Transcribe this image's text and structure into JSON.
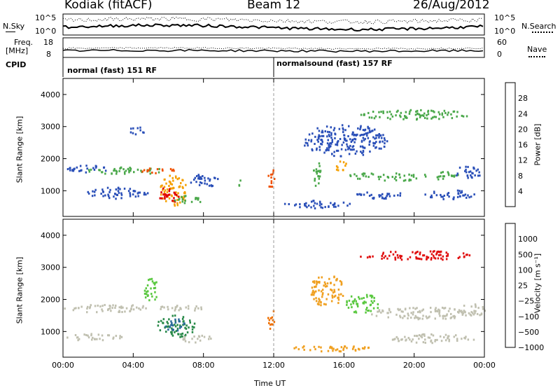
{
  "header": {
    "station": "Kodiak (fitACF)",
    "beam": "Beam 12",
    "date": "26/Aug/2012"
  },
  "top_strip": {
    "nsky_label": "N.Sky",
    "nsky_ticks": [
      "10^5",
      "10^0"
    ],
    "nsearch_label": "N.Search",
    "nsearch_ticks": [
      "10^5",
      "10^0"
    ],
    "freq_label": "Freq.",
    "freq_unit": "[MHz]",
    "freq_ticks": [
      "18",
      "8"
    ],
    "nave_label": "Nave",
    "nave_ticks": [
      "60",
      "0"
    ],
    "cpid_label": "CPID",
    "cpid_segments": [
      {
        "label": "normal (fast) 151 RF",
        "start_hour": 0
      },
      {
        "label": "normalsound (fast) 157 RF",
        "start_hour": 12
      }
    ]
  },
  "chart_data": [
    {
      "type": "heatmap",
      "name": "power-panel",
      "ylabel": "Slant Range [km]",
      "ylim": [
        200,
        4500
      ],
      "yticks": [
        "1000",
        "2000",
        "3000",
        "4000"
      ],
      "xlim": [
        0,
        24
      ],
      "colorbar_label": "Power [dB]",
      "colorbar_ticks": [
        "4",
        "8",
        "12",
        "16",
        "20",
        "24",
        "28"
      ],
      "colorbar_colors": [
        "#0000ff",
        "#2a4fb8",
        "#3a7a70",
        "#4aa84a",
        "#c8c820",
        "#f5a000",
        "#f05000",
        "#e00000"
      ],
      "patches": [
        {
          "x": 1.2,
          "y": 1700,
          "rx": 1.3,
          "ry": 120,
          "c": "#2a4fb8"
        },
        {
          "x": 3.5,
          "y": 1650,
          "rx": 2.3,
          "ry": 110,
          "c": "#4aa84a"
        },
        {
          "x": 5.4,
          "y": 1650,
          "rx": 1.0,
          "ry": 90,
          "c": "#f05000"
        },
        {
          "x": 6.3,
          "y": 1050,
          "rx": 0.8,
          "ry": 500,
          "c": "#f5a000"
        },
        {
          "x": 6.0,
          "y": 900,
          "rx": 0.6,
          "ry": 250,
          "c": "#e00000"
        },
        {
          "x": 7.2,
          "y": 750,
          "rx": 0.9,
          "ry": 130,
          "c": "#4aa84a"
        },
        {
          "x": 3.0,
          "y": 950,
          "rx": 1.8,
          "ry": 180,
          "c": "#2a4fb8"
        },
        {
          "x": 8.0,
          "y": 1350,
          "rx": 0.9,
          "ry": 200,
          "c": "#2a4fb8"
        },
        {
          "x": 4.2,
          "y": 2900,
          "rx": 0.5,
          "ry": 120,
          "c": "#2a4fb8"
        },
        {
          "x": 11.8,
          "y": 1450,
          "rx": 0.2,
          "ry": 350,
          "c": "#f05000"
        },
        {
          "x": 10.0,
          "y": 1250,
          "rx": 0.1,
          "ry": 150,
          "c": "#4aa84a"
        },
        {
          "x": 14.5,
          "y": 1500,
          "rx": 0.3,
          "ry": 400,
          "c": "#4aa84a"
        },
        {
          "x": 15.8,
          "y": 1800,
          "rx": 0.4,
          "ry": 150,
          "c": "#f5a000"
        },
        {
          "x": 14.5,
          "y": 600,
          "rx": 2.0,
          "ry": 120,
          "c": "#2a4fb8"
        },
        {
          "x": 17.0,
          "y": 1500,
          "rx": 0.7,
          "ry": 120,
          "c": "#4aa84a"
        },
        {
          "x": 19.0,
          "y": 1450,
          "rx": 1.2,
          "ry": 130,
          "c": "#4aa84a"
        },
        {
          "x": 21.5,
          "y": 1500,
          "rx": 1.0,
          "ry": 120,
          "c": "#4aa84a"
        },
        {
          "x": 23.0,
          "y": 1600,
          "rx": 0.8,
          "ry": 200,
          "c": "#2a4fb8"
        },
        {
          "x": 22.0,
          "y": 900,
          "rx": 1.5,
          "ry": 150,
          "c": "#2a4fb8"
        },
        {
          "x": 18.0,
          "y": 900,
          "rx": 1.5,
          "ry": 120,
          "c": "#2a4fb8"
        },
        {
          "x": 16.0,
          "y": 2600,
          "rx": 2.5,
          "ry": 500,
          "c": "#2a4fb8"
        },
        {
          "x": 20.0,
          "y": 3400,
          "rx": 3.3,
          "ry": 150,
          "c": "#4aa84a"
        }
      ]
    },
    {
      "type": "heatmap",
      "name": "velocity-panel",
      "ylabel": "Slant Range [km]",
      "ylim": [
        200,
        4500
      ],
      "yticks": [
        "1000",
        "2000",
        "3000",
        "4000"
      ],
      "xlim": [
        0,
        24
      ],
      "xticks": [
        "00:00",
        "04:00",
        "08:00",
        "12:00",
        "16:00",
        "20:00",
        "00:00"
      ],
      "xlabel": "Time UT",
      "colorbar_label": "Velocity [m s⁻¹]",
      "colorbar_ticks": [
        "1000",
        "500",
        "100",
        "25",
        "−25",
        "−100",
        "−500",
        "−1000"
      ],
      "colorbar_colors": [
        "#1a3aa0",
        "#2a6a9a",
        "#2a8a4a",
        "#5ac840",
        "#c0c0b0",
        "#f0a020",
        "#f07000",
        "#e01010"
      ],
      "patches": [
        {
          "x": 2.5,
          "y": 1750,
          "rx": 2.5,
          "ry": 130,
          "c": "#c0c0b0"
        },
        {
          "x": 6.5,
          "y": 1750,
          "rx": 1.5,
          "ry": 100,
          "c": "#c0c0b0"
        },
        {
          "x": 6.4,
          "y": 1200,
          "rx": 1.1,
          "ry": 350,
          "c": "#2a8a4a"
        },
        {
          "x": 6.3,
          "y": 1250,
          "rx": 0.6,
          "ry": 200,
          "c": "#2a6a9a"
        },
        {
          "x": 7.6,
          "y": 800,
          "rx": 0.9,
          "ry": 120,
          "c": "#c0c0b0"
        },
        {
          "x": 1.8,
          "y": 850,
          "rx": 1.6,
          "ry": 110,
          "c": "#c0c0b0"
        },
        {
          "x": 5.0,
          "y": 2300,
          "rx": 0.4,
          "ry": 400,
          "c": "#5ac840"
        },
        {
          "x": 11.8,
          "y": 1450,
          "rx": 0.2,
          "ry": 350,
          "c": "#f07000"
        },
        {
          "x": 15.0,
          "y": 2300,
          "rx": 1.0,
          "ry": 500,
          "c": "#f0a020"
        },
        {
          "x": 17.0,
          "y": 1900,
          "rx": 1.0,
          "ry": 300,
          "c": "#5ac840"
        },
        {
          "x": 20.5,
          "y": 1600,
          "rx": 3.0,
          "ry": 200,
          "c": "#c0c0b0"
        },
        {
          "x": 23.2,
          "y": 1700,
          "rx": 0.8,
          "ry": 200,
          "c": "#c0c0b0"
        },
        {
          "x": 21.0,
          "y": 800,
          "rx": 2.5,
          "ry": 150,
          "c": "#c0c0b0"
        },
        {
          "x": 15.0,
          "y": 500,
          "rx": 2.5,
          "ry": 100,
          "c": "#f0a020"
        },
        {
          "x": 20.0,
          "y": 3400,
          "rx": 3.3,
          "ry": 150,
          "c": "#e01010"
        }
      ]
    }
  ]
}
